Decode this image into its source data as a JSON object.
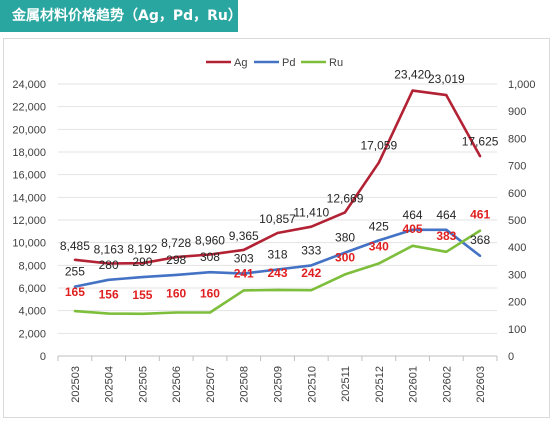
{
  "header": {
    "title": "金属材料价格趋势（Ag，Pd，Ru）"
  },
  "chart_data": {
    "type": "line",
    "categories": [
      "202503",
      "202504",
      "202505",
      "202506",
      "202507",
      "202508",
      "202509",
      "202510",
      "202511",
      "202512",
      "202601",
      "202602",
      "202603"
    ],
    "y_left": {
      "ticks": [
        "0",
        "2,000",
        "4,000",
        "6,000",
        "8,000",
        "10,000",
        "12,000",
        "14,000",
        "16,000",
        "18,000",
        "20,000",
        "22,000",
        "24,000"
      ],
      "lim": [
        0,
        24000
      ]
    },
    "y_right": {
      "ticks": [
        "0",
        "100",
        "200",
        "300",
        "400",
        "500",
        "600",
        "700",
        "800",
        "900",
        "1,000"
      ],
      "lim": [
        0,
        1000
      ]
    },
    "grid": true,
    "legend_position": "top",
    "series": [
      {
        "name": "Ag",
        "axis": "left",
        "color": "#B22234",
        "values": [
          8485,
          8163,
          8192,
          8728,
          8960,
          9365,
          10857,
          11410,
          12669,
          17059,
          23420,
          23019,
          17625
        ],
        "labels": [
          "8,485",
          "8,163",
          "8,192",
          "8,728",
          "8,960",
          "9,365",
          "10,857",
          "11,410",
          "12,669",
          "17,059",
          "23,420",
          "23,019",
          "17,625"
        ]
      },
      {
        "name": "Pd",
        "axis": "right",
        "color": "#4472C4",
        "values": [
          255,
          280,
          290,
          298,
          308,
          303,
          318,
          333,
          380,
          425,
          464,
          464,
          368
        ],
        "labels": [
          "255",
          "280",
          "290",
          "298",
          "308",
          "303",
          "318",
          "333",
          "380",
          "425",
          "464",
          "464",
          "368"
        ]
      },
      {
        "name": "Ru",
        "axis": "right",
        "color": "#7DBE3B",
        "values": [
          165,
          156,
          155,
          160,
          160,
          241,
          243,
          242,
          300,
          340,
          405,
          383,
          461
        ],
        "labels": [
          "165",
          "156",
          "155",
          "160",
          "160",
          "241",
          "243",
          "242",
          "300",
          "340",
          "405",
          "383",
          "461"
        ]
      }
    ]
  }
}
